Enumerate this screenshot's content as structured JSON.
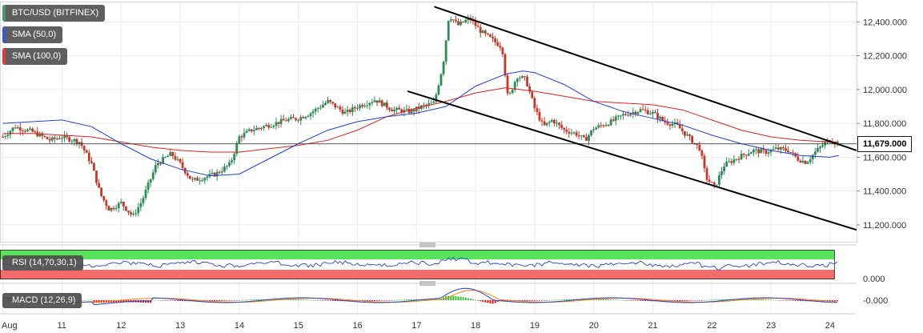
{
  "legend": {
    "symbol": "BTC/USD (BITFINEX)",
    "sma50": "SMA (50,0)",
    "sma100": "SMA (100,0)"
  },
  "indicators": {
    "rsi_label": "RSI (14,70,30,1)",
    "macd_label": "MACD (12,26,9)",
    "rsi_axis_value": "0.000",
    "macd_axis_value": "-0.000"
  },
  "colors": {
    "bull": "#2e8b57",
    "bear": "#c0392b",
    "sma50": "#1f3fd6",
    "sma100": "#e02020",
    "trendline": "#000000",
    "rsi_overbought": "#59e35a",
    "rsi_oversold": "#f46b6b",
    "rsi_line": "#2244cc",
    "macd_line": "#2244cc",
    "signal_line": "#ff7f0e",
    "hist_pos": "#27c227",
    "hist_neg": "#e01414"
  },
  "chart_data": {
    "type": "candlestick",
    "title": "BTC/USD (BITFINEX)",
    "ylim": [
      11100,
      12520
    ],
    "y_ticks": [
      {
        "value": 12400,
        "label": "12,400.000"
      },
      {
        "value": 12200,
        "label": "12,200.000"
      },
      {
        "value": 12000,
        "label": "12,000.000"
      },
      {
        "value": 11800,
        "label": "11,800.000"
      },
      {
        "value": 11600,
        "label": "11,600.000"
      },
      {
        "value": 11400,
        "label": "11,400.000"
      },
      {
        "value": 11200,
        "label": "11,200.000"
      }
    ],
    "x_ticks": [
      {
        "t": 10,
        "label": "Aug"
      },
      {
        "t": 11,
        "label": "11"
      },
      {
        "t": 12,
        "label": "12"
      },
      {
        "t": 13,
        "label": "13"
      },
      {
        "t": 14,
        "label": "14"
      },
      {
        "t": 15,
        "label": "15"
      },
      {
        "t": 16,
        "label": "16"
      },
      {
        "t": 17,
        "label": "17"
      },
      {
        "t": 18,
        "label": "18"
      },
      {
        "t": 19,
        "label": "19"
      },
      {
        "t": 20,
        "label": "20"
      },
      {
        "t": 21,
        "label": "21"
      },
      {
        "t": 22,
        "label": "22"
      },
      {
        "t": 23,
        "label": "23"
      },
      {
        "t": 24,
        "label": "24"
      }
    ],
    "last_price": 11679,
    "last_price_label": "11,679.000",
    "price_path": [
      [
        10.0,
        11720
      ],
      [
        10.2,
        11780
      ],
      [
        10.5,
        11750
      ],
      [
        10.8,
        11700
      ],
      [
        11.0,
        11720
      ],
      [
        11.3,
        11690
      ],
      [
        11.5,
        11560
      ],
      [
        11.65,
        11380
      ],
      [
        11.8,
        11290
      ],
      [
        12.0,
        11330
      ],
      [
        12.2,
        11250
      ],
      [
        12.35,
        11340
      ],
      [
        12.6,
        11560
      ],
      [
        12.85,
        11620
      ],
      [
        13.0,
        11560
      ],
      [
        13.2,
        11460
      ],
      [
        13.4,
        11480
      ],
      [
        13.6,
        11500
      ],
      [
        13.85,
        11560
      ],
      [
        14.0,
        11720
      ],
      [
        14.2,
        11760
      ],
      [
        14.5,
        11790
      ],
      [
        14.8,
        11820
      ],
      [
        15.0,
        11830
      ],
      [
        15.2,
        11860
      ],
      [
        15.5,
        11930
      ],
      [
        15.8,
        11860
      ],
      [
        16.0,
        11900
      ],
      [
        16.3,
        11940
      ],
      [
        16.6,
        11880
      ],
      [
        16.9,
        11870
      ],
      [
        17.1,
        11900
      ],
      [
        17.3,
        11920
      ],
      [
        17.45,
        12150
      ],
      [
        17.55,
        12440
      ],
      [
        17.7,
        12380
      ],
      [
        17.9,
        12420
      ],
      [
        18.1,
        12340
      ],
      [
        18.3,
        12290
      ],
      [
        18.45,
        12250
      ],
      [
        18.55,
        11940
      ],
      [
        18.7,
        12080
      ],
      [
        18.85,
        12060
      ],
      [
        19.0,
        11890
      ],
      [
        19.15,
        11780
      ],
      [
        19.3,
        11820
      ],
      [
        19.5,
        11760
      ],
      [
        19.7,
        11740
      ],
      [
        19.85,
        11700
      ],
      [
        20.0,
        11770
      ],
      [
        20.3,
        11810
      ],
      [
        20.5,
        11850
      ],
      [
        20.8,
        11880
      ],
      [
        21.0,
        11860
      ],
      [
        21.2,
        11810
      ],
      [
        21.4,
        11790
      ],
      [
        21.6,
        11720
      ],
      [
        21.8,
        11650
      ],
      [
        21.9,
        11480
      ],
      [
        22.05,
        11420
      ],
      [
        22.2,
        11550
      ],
      [
        22.45,
        11600
      ],
      [
        22.7,
        11640
      ],
      [
        22.9,
        11630
      ],
      [
        23.1,
        11650
      ],
      [
        23.3,
        11640
      ],
      [
        23.45,
        11590
      ],
      [
        23.6,
        11570
      ],
      [
        23.75,
        11630
      ],
      [
        23.9,
        11680
      ],
      [
        24.0,
        11700
      ],
      [
        24.15,
        11679
      ]
    ],
    "sma50_path": [
      [
        10.0,
        11800
      ],
      [
        10.5,
        11810
      ],
      [
        11.0,
        11820
      ],
      [
        11.5,
        11780
      ],
      [
        12.0,
        11680
      ],
      [
        12.5,
        11590
      ],
      [
        13.0,
        11530
      ],
      [
        13.5,
        11490
      ],
      [
        14.0,
        11500
      ],
      [
        14.5,
        11590
      ],
      [
        15.0,
        11680
      ],
      [
        15.5,
        11760
      ],
      [
        16.0,
        11810
      ],
      [
        16.5,
        11840
      ],
      [
        17.0,
        11860
      ],
      [
        17.5,
        11900
      ],
      [
        18.0,
        12020
      ],
      [
        18.5,
        12090
      ],
      [
        18.8,
        12110
      ],
      [
        19.0,
        12100
      ],
      [
        19.5,
        12030
      ],
      [
        20.0,
        11930
      ],
      [
        20.5,
        11870
      ],
      [
        21.0,
        11830
      ],
      [
        21.5,
        11790
      ],
      [
        22.0,
        11730
      ],
      [
        22.5,
        11680
      ],
      [
        23.0,
        11640
      ],
      [
        23.5,
        11610
      ],
      [
        24.0,
        11600
      ],
      [
        24.15,
        11610
      ]
    ],
    "sma100_path": [
      [
        10.0,
        11740
      ],
      [
        10.5,
        11740
      ],
      [
        11.0,
        11730
      ],
      [
        11.5,
        11720
      ],
      [
        12.0,
        11690
      ],
      [
        12.5,
        11660
      ],
      [
        13.0,
        11640
      ],
      [
        13.5,
        11630
      ],
      [
        14.0,
        11630
      ],
      [
        14.5,
        11650
      ],
      [
        15.0,
        11670
      ],
      [
        15.5,
        11700
      ],
      [
        16.0,
        11760
      ],
      [
        16.5,
        11840
      ],
      [
        17.0,
        11890
      ],
      [
        17.5,
        11930
      ],
      [
        18.0,
        11980
      ],
      [
        18.5,
        12010
      ],
      [
        19.0,
        11990
      ],
      [
        19.5,
        11960
      ],
      [
        20.0,
        11930
      ],
      [
        20.5,
        11920
      ],
      [
        21.0,
        11910
      ],
      [
        21.5,
        11880
      ],
      [
        22.0,
        11820
      ],
      [
        22.5,
        11760
      ],
      [
        23.0,
        11720
      ],
      [
        23.5,
        11700
      ],
      [
        24.0,
        11690
      ],
      [
        24.15,
        11690
      ]
    ],
    "upper_trendline": [
      [
        17.3,
        12490
      ],
      [
        24.45,
        11640
      ]
    ],
    "lower_trendline": [
      [
        16.85,
        11990
      ],
      [
        24.45,
        11170
      ]
    ]
  }
}
